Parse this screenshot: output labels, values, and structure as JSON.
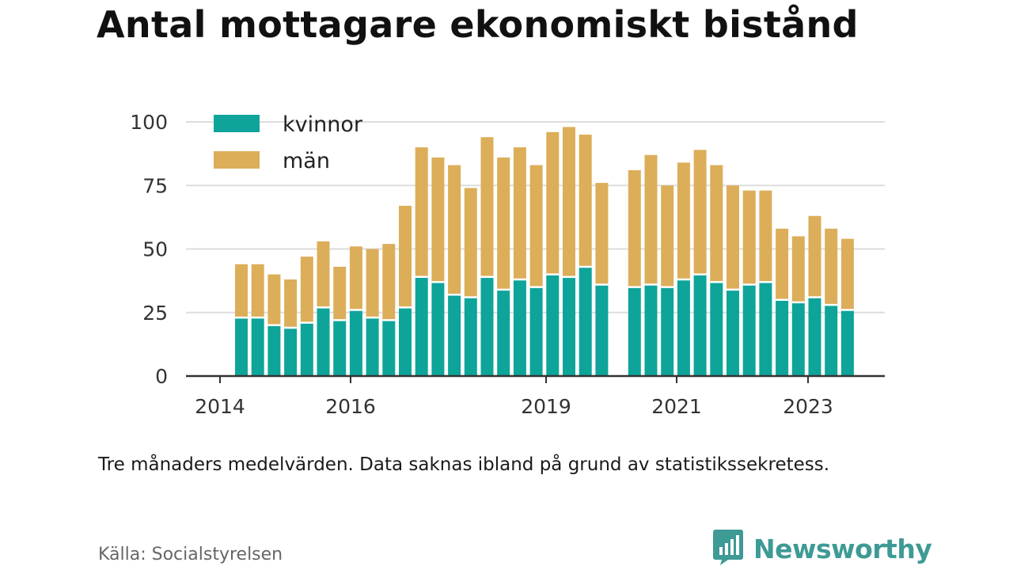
{
  "header": {
    "title": "Antal mottagare ekonomiskt bistånd"
  },
  "chart_data": {
    "type": "bar",
    "stacked": true,
    "ylim": [
      0,
      100
    ],
    "yticks": [
      0,
      25,
      50,
      75,
      100
    ],
    "xticks": [
      "2014",
      "2016",
      "2019",
      "2021",
      "2023"
    ],
    "grid": "horizontal",
    "legend_position": "top-left",
    "series": [
      {
        "name": "kvinnor",
        "color": "#0ea49a",
        "values": [
          23,
          23,
          20,
          19,
          21,
          27,
          22,
          26,
          23,
          22,
          27,
          39,
          37,
          32,
          31,
          39,
          34,
          38,
          35,
          40,
          39,
          43,
          36,
          null,
          35,
          36,
          35,
          38,
          40,
          37,
          34,
          36,
          37,
          30,
          29,
          31,
          28,
          26
        ]
      },
      {
        "name": "män",
        "color": "#dcae5a",
        "values": [
          21,
          21,
          20,
          19,
          26,
          26,
          21,
          25,
          27,
          30,
          40,
          51,
          49,
          51,
          43,
          55,
          52,
          52,
          48,
          56,
          59,
          52,
          40,
          null,
          46,
          51,
          40,
          46,
          49,
          46,
          41,
          37,
          36,
          28,
          26,
          32,
          30,
          28
        ]
      }
    ]
  },
  "caption": "Tre månaders medelvärden. Data saknas ibland på grund av statistikssekretess.",
  "source": "Källa: Socialstyrelsen",
  "brand": {
    "name": "Newsworthy",
    "color": "#3e9a95",
    "icon": "bar-chart-speech-bubble-icon"
  }
}
